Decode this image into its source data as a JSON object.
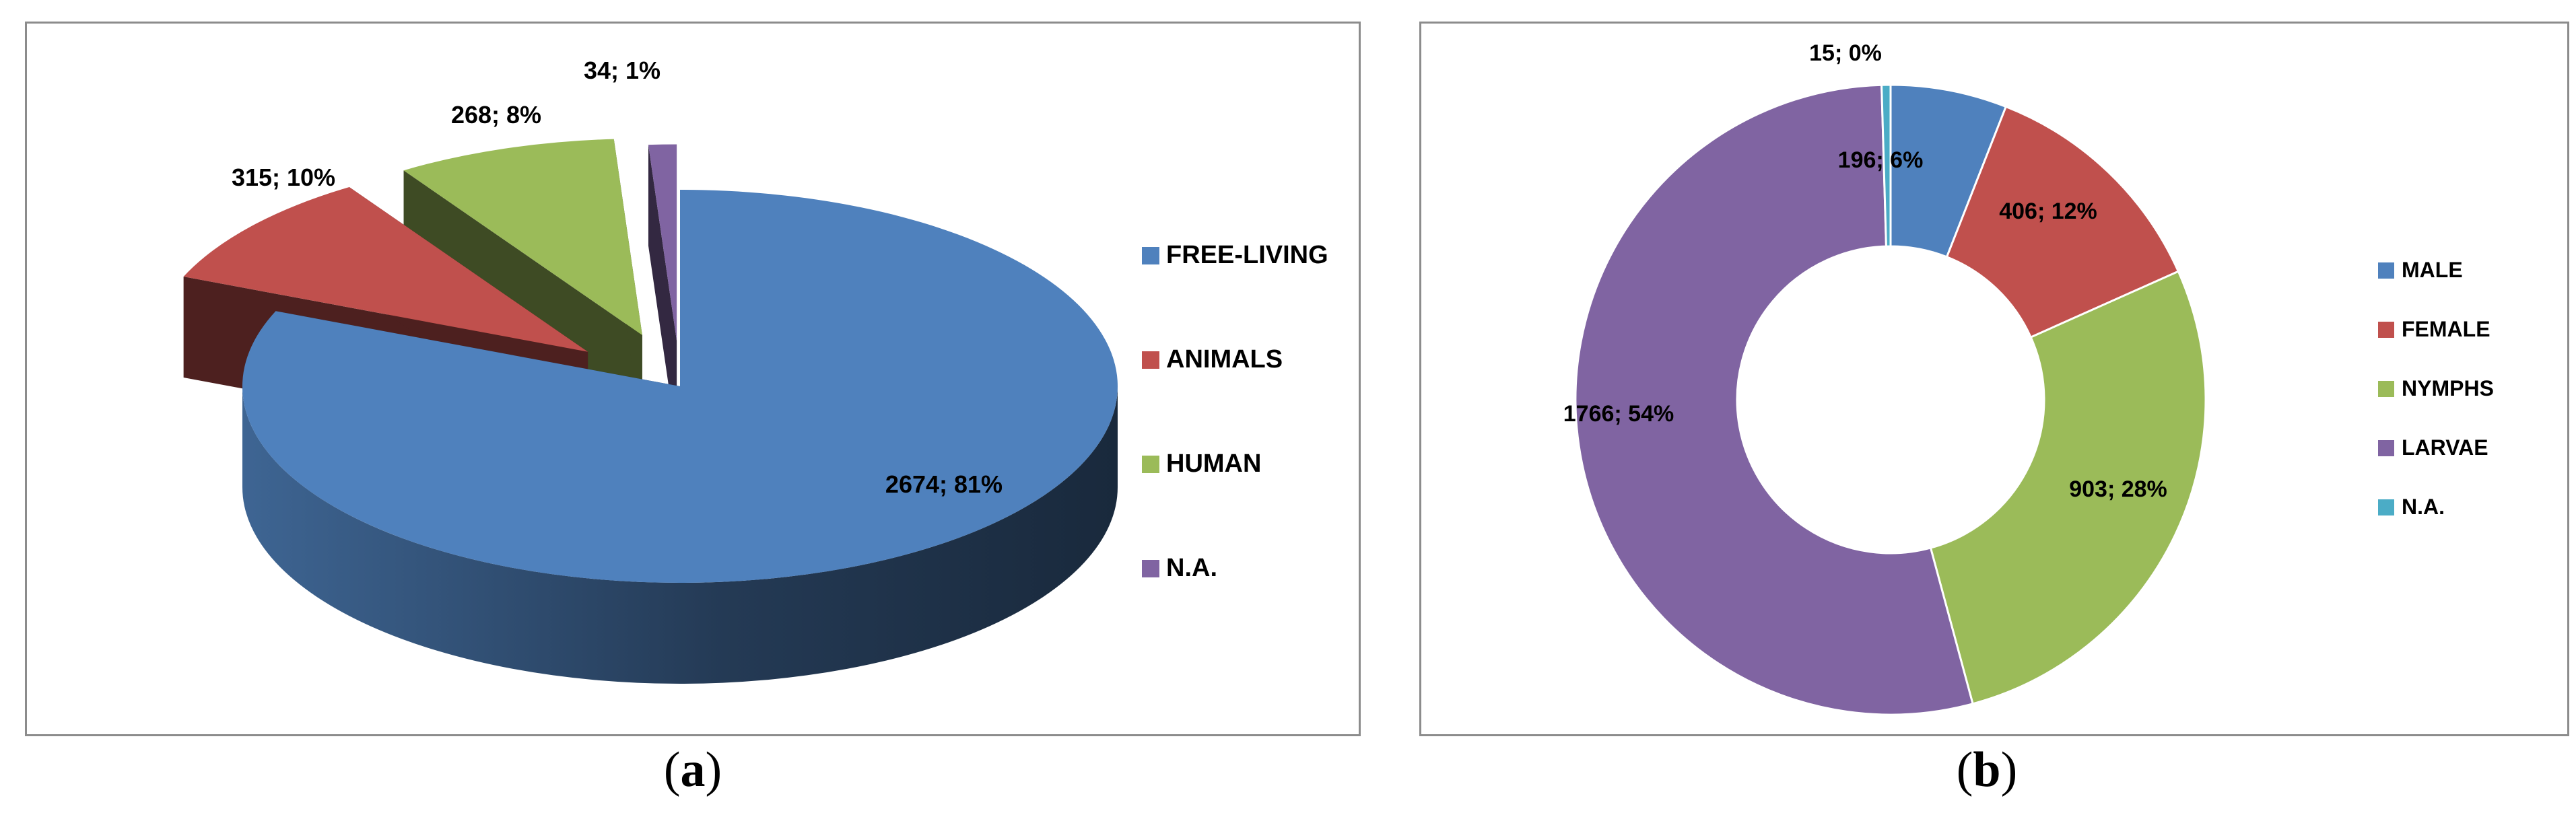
{
  "chart_data": [
    {
      "type": "pie",
      "style": "3d-exploded",
      "panel_label": "a",
      "title": "",
      "legend_position": "right",
      "slices": [
        {
          "name": "FREE-LIVING",
          "value": 2674,
          "label": "2674; 81%",
          "color": "#4f81bd"
        },
        {
          "name": "ANIMALS",
          "value": 315,
          "label": "315; 10%",
          "color": "#c0504d"
        },
        {
          "name": "HUMAN",
          "value": 268,
          "label": "268; 8%",
          "color": "#9bbb59"
        },
        {
          "name": "N.A.",
          "value": 34,
          "label": "34; 1%",
          "color": "#8064a2"
        }
      ]
    },
    {
      "type": "pie",
      "style": "donut",
      "panel_label": "b",
      "title": "",
      "legend_position": "right",
      "slices": [
        {
          "name": "MALE",
          "value": 196,
          "label": "196; 6%",
          "color": "#4f81bd"
        },
        {
          "name": "FEMALE",
          "value": 406,
          "label": "406; 12%",
          "color": "#c0504d"
        },
        {
          "name": "NYMPHS",
          "value": 903,
          "label": "903; 28%",
          "color": "#9bbb59"
        },
        {
          "name": "LARVAE",
          "value": 1766,
          "label": "1766; 54%",
          "color": "#8064a2"
        },
        {
          "name": "N.A.",
          "value": 15,
          "label": "15; 0%",
          "color": "#4bacc6"
        }
      ]
    }
  ]
}
